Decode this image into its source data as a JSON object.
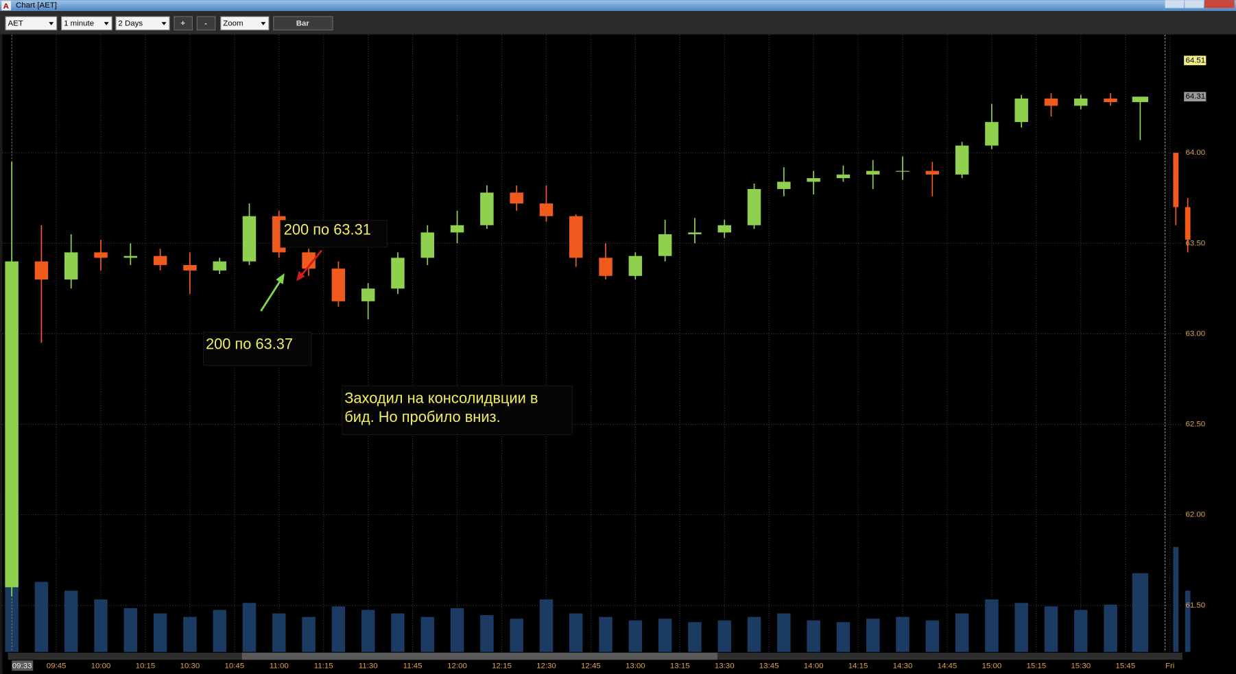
{
  "ui": {
    "window_title": "Chart [AET]",
    "symbol": "AET",
    "interval": "1 minute",
    "range": "2 Days",
    "zoom_in": "+",
    "zoom_out": "-",
    "zoom": "Zoom",
    "style": "Bar",
    "cursor_time": "09:33"
  },
  "annotations": {
    "sell": "200 по 63.31",
    "buy": "200 по 63.37",
    "comment": [
      "Заходил на консолидвции в",
      "бид. Но пробило вниз."
    ]
  },
  "chart_data": {
    "type": "candlestick",
    "up_color": "#8fd14f",
    "down_color": "#f05a1c",
    "volume_color": "#1b3b63",
    "x": [
      570,
      580,
      590,
      600,
      610,
      620,
      630,
      640,
      650,
      660,
      670,
      680,
      690,
      700,
      710,
      720,
      730,
      740,
      750,
      760,
      770,
      780,
      790,
      800,
      810,
      820,
      830,
      840,
      850,
      860,
      870,
      880,
      890,
      900,
      910,
      920,
      930,
      940,
      950,
      962,
      966
    ],
    "open": [
      61.6,
      63.4,
      63.3,
      63.45,
      63.42,
      63.43,
      63.38,
      63.35,
      63.4,
      63.65,
      63.45,
      63.36,
      63.18,
      63.25,
      63.42,
      63.56,
      63.6,
      63.78,
      63.72,
      63.65,
      63.42,
      63.32,
      63.43,
      63.55,
      63.56,
      63.6,
      63.8,
      63.84,
      63.86,
      63.88,
      63.9,
      63.9,
      63.88,
      64.04,
      64.17,
      64.3,
      64.26,
      64.3,
      64.28,
      64.0,
      63.7
    ],
    "high": [
      63.95,
      63.6,
      63.55,
      63.52,
      63.5,
      63.47,
      63.45,
      63.42,
      63.72,
      63.68,
      63.47,
      63.4,
      63.28,
      63.45,
      63.6,
      63.68,
      63.82,
      63.82,
      63.82,
      63.66,
      63.5,
      63.45,
      63.63,
      63.64,
      63.63,
      63.83,
      63.92,
      63.9,
      63.93,
      63.96,
      63.98,
      63.95,
      64.06,
      64.27,
      64.32,
      64.33,
      64.32,
      64.33,
      64.31,
      64.0,
      63.75
    ],
    "low": [
      61.55,
      62.95,
      63.25,
      63.35,
      63.38,
      63.35,
      63.22,
      63.33,
      63.38,
      63.42,
      63.32,
      63.15,
      63.08,
      63.22,
      63.38,
      63.5,
      63.58,
      63.68,
      63.62,
      63.37,
      63.3,
      63.3,
      63.4,
      63.5,
      63.53,
      63.58,
      63.76,
      63.77,
      63.84,
      63.8,
      63.85,
      63.76,
      63.86,
      64.02,
      64.14,
      64.2,
      64.24,
      64.26,
      64.07,
      63.6,
      63.45
    ],
    "close": [
      63.4,
      63.3,
      63.45,
      63.42,
      63.43,
      63.38,
      63.35,
      63.4,
      63.65,
      63.45,
      63.36,
      63.18,
      63.25,
      63.42,
      63.56,
      63.6,
      63.78,
      63.72,
      63.65,
      63.42,
      63.32,
      63.43,
      63.55,
      63.56,
      63.6,
      63.8,
      63.84,
      63.86,
      63.88,
      63.9,
      63.9,
      63.88,
      64.04,
      64.17,
      64.3,
      64.26,
      64.3,
      64.28,
      64.31,
      63.7,
      63.52
    ],
    "volume": [
      90000,
      40000,
      35000,
      30000,
      25000,
      22000,
      20000,
      24000,
      28000,
      22000,
      20000,
      26000,
      24000,
      22000,
      20000,
      25000,
      21000,
      19000,
      30000,
      22000,
      20000,
      18000,
      19000,
      17000,
      18000,
      20000,
      22000,
      18000,
      17000,
      19000,
      20000,
      18000,
      22000,
      30000,
      28000,
      26000,
      24000,
      27000,
      45000,
      60000,
      35000
    ],
    "xlim": [
      568.7,
      964.2
    ],
    "ylim": [
      61.243,
      64.648
    ],
    "xticks": [
      {
        "value": 585,
        "label": "09:45"
      },
      {
        "value": 600,
        "label": "10:00"
      },
      {
        "value": 615,
        "label": "10:15"
      },
      {
        "value": 630,
        "label": "10:30"
      },
      {
        "value": 645,
        "label": "10:45"
      },
      {
        "value": 660,
        "label": "11:00"
      },
      {
        "value": 675,
        "label": "11:15"
      },
      {
        "value": 690,
        "label": "11:30"
      },
      {
        "value": 705,
        "label": "11:45"
      },
      {
        "value": 720,
        "label": "12:00"
      },
      {
        "value": 735,
        "label": "12:15"
      },
      {
        "value": 750,
        "label": "12:30"
      },
      {
        "value": 765,
        "label": "12:45"
      },
      {
        "value": 780,
        "label": "13:00"
      },
      {
        "value": 795,
        "label": "13:15"
      },
      {
        "value": 810,
        "label": "13:30"
      },
      {
        "value": 825,
        "label": "13:45"
      },
      {
        "value": 840,
        "label": "14:00"
      },
      {
        "value": 855,
        "label": "14:15"
      },
      {
        "value": 870,
        "label": "14:30"
      },
      {
        "value": 885,
        "label": "14:45"
      },
      {
        "value": 900,
        "label": "15:00"
      },
      {
        "value": 915,
        "label": "15:15"
      },
      {
        "value": 930,
        "label": "15:30"
      },
      {
        "value": 945,
        "label": "15:45"
      },
      {
        "value": 960,
        "label": "Fri"
      }
    ],
    "yticks": [
      {
        "value": 61.5,
        "label": "61.50"
      },
      {
        "value": 62,
        "label": "62.00"
      },
      {
        "value": 62.5,
        "label": "62.50"
      },
      {
        "value": 63,
        "label": "63.00"
      },
      {
        "value": 63.5,
        "label": "63.50"
      },
      {
        "value": 64,
        "label": "64.00"
      }
    ],
    "price_markers": [
      {
        "value": 64.51,
        "color": "#f5f08a"
      },
      {
        "value": 64.31,
        "color": "#9a9a9a"
      }
    ],
    "grid": true
  }
}
